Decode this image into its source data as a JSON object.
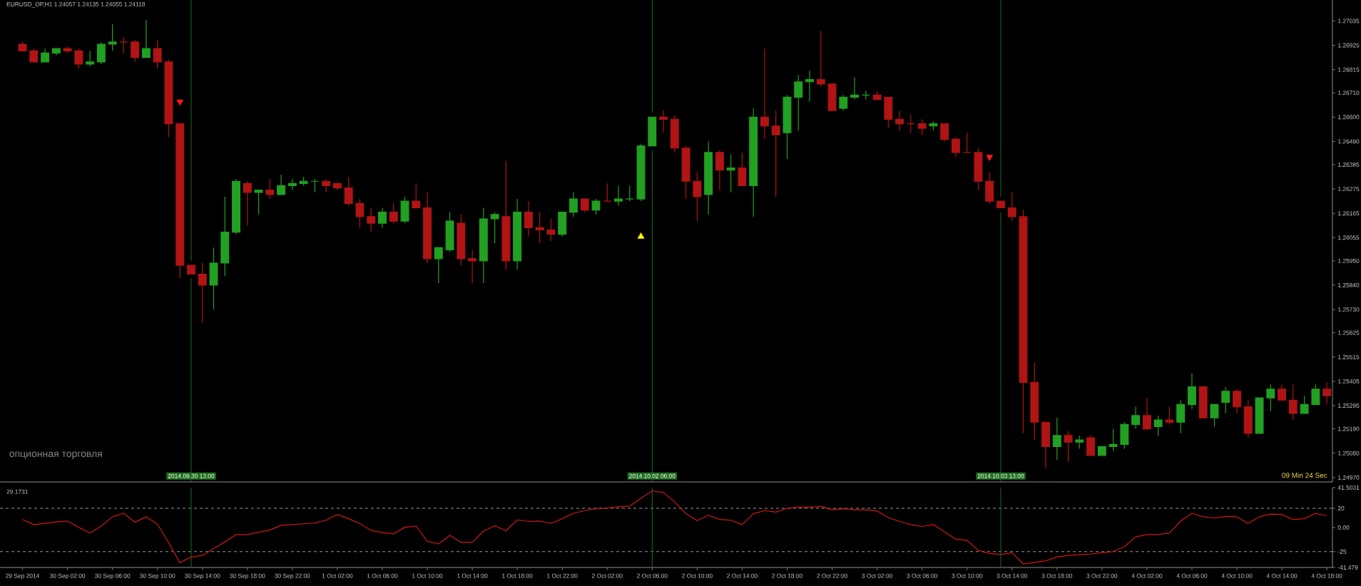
{
  "chart_data": [
    {
      "type": "candlestick",
      "title": "EURUSD_OP,H1  1.24057 1.24135 1.24055 1.24118",
      "x": [
        "2014-09-29T22:00",
        "2014-09-29T23:00",
        "2014-09-30T00:00",
        "2014-09-30T01:00",
        "2014-09-30T02:00",
        "2014-09-30T03:00",
        "2014-09-30T04:00",
        "2014-09-30T05:00",
        "2014-09-30T06:00",
        "2014-09-30T07:00",
        "2014-09-30T08:00",
        "2014-09-30T09:00",
        "2014-09-30T10:00",
        "2014-09-30T11:00",
        "2014-09-30T12:00",
        "2014-09-30T13:00",
        "2014-09-30T14:00",
        "2014-09-30T15:00",
        "2014-09-30T16:00",
        "2014-09-30T17:00",
        "2014-09-30T18:00",
        "2014-09-30T19:00",
        "2014-09-30T20:00",
        "2014-09-30T21:00",
        "2014-09-30T22:00",
        "2014-09-30T23:00",
        "2014-10-01T00:00",
        "2014-10-01T01:00",
        "2014-10-01T02:00",
        "2014-10-01T03:00",
        "2014-10-01T04:00",
        "2014-10-01T05:00",
        "2014-10-01T06:00",
        "2014-10-01T07:00",
        "2014-10-01T08:00",
        "2014-10-01T09:00",
        "2014-10-01T10:00",
        "2014-10-01T11:00",
        "2014-10-01T12:00",
        "2014-10-01T13:00",
        "2014-10-01T14:00",
        "2014-10-01T15:00",
        "2014-10-01T16:00",
        "2014-10-01T17:00",
        "2014-10-01T18:00",
        "2014-10-01T19:00",
        "2014-10-01T20:00",
        "2014-10-01T21:00",
        "2014-10-01T22:00",
        "2014-10-01T23:00",
        "2014-10-02T00:00",
        "2014-10-02T01:00",
        "2014-10-02T02:00",
        "2014-10-02T03:00",
        "2014-10-02T04:00",
        "2014-10-02T05:00",
        "2014-10-02T06:00",
        "2014-10-02T07:00",
        "2014-10-02T08:00",
        "2014-10-02T09:00",
        "2014-10-02T10:00",
        "2014-10-02T11:00",
        "2014-10-02T12:00",
        "2014-10-02T13:00",
        "2014-10-02T14:00",
        "2014-10-02T15:00",
        "2014-10-02T16:00",
        "2014-10-02T17:00",
        "2014-10-02T18:00",
        "2014-10-02T19:00",
        "2014-10-02T20:00",
        "2014-10-02T21:00",
        "2014-10-02T22:00",
        "2014-10-02T23:00",
        "2014-10-03T00:00",
        "2014-10-03T01:00",
        "2014-10-03T02:00",
        "2014-10-03T03:00",
        "2014-10-03T04:00",
        "2014-10-03T05:00",
        "2014-10-03T06:00",
        "2014-10-03T07:00",
        "2014-10-03T08:00",
        "2014-10-03T09:00",
        "2014-10-03T10:00",
        "2014-10-03T11:00",
        "2014-10-03T12:00",
        "2014-10-03T13:00",
        "2014-10-03T14:00",
        "2014-10-03T15:00",
        "2014-10-03T16:00",
        "2014-10-03T17:00",
        "2014-10-03T18:00",
        "2014-10-03T19:00",
        "2014-10-03T20:00",
        "2014-10-03T21:00",
        "2014-10-03T22:00",
        "2014-10-03T23:00",
        "2014-10-04T00:00",
        "2014-10-04T01:00",
        "2014-10-04T02:00",
        "2014-10-04T03:00",
        "2014-10-04T04:00",
        "2014-10-04T05:00",
        "2014-10-04T06:00",
        "2014-10-04T07:00",
        "2014-10-04T08:00",
        "2014-10-04T09:00",
        "2014-10-04T10:00",
        "2014-10-04T11:00",
        "2014-10-04T12:00",
        "2014-10-04T13:00",
        "2014-10-04T14:00",
        "2014-10-04T15:00",
        "2014-10-04T16:00",
        "2014-10-04T17:00",
        "2014-10-04T18:00"
      ],
      "ohlc": [
        [
          1.2693,
          1.2694,
          1.269,
          1.269
        ],
        [
          1.269,
          1.2691,
          1.2685,
          1.2685
        ],
        [
          1.2685,
          1.2691,
          1.2685,
          1.2689
        ],
        [
          1.2689,
          1.2691,
          1.2688,
          1.2691
        ],
        [
          1.2691,
          1.2692,
          1.2689,
          1.269
        ],
        [
          1.269,
          1.2691,
          1.2682,
          1.2684
        ],
        [
          1.2684,
          1.269,
          1.2683,
          1.2685
        ],
        [
          1.2685,
          1.2694,
          1.2684,
          1.2693
        ],
        [
          1.2693,
          1.2702,
          1.269,
          1.2694
        ],
        [
          1.2694,
          1.2696,
          1.2689,
          1.2694
        ],
        [
          1.2694,
          1.2695,
          1.2685,
          1.2687
        ],
        [
          1.2687,
          1.2704,
          1.2687,
          1.2691
        ],
        [
          1.2691,
          1.2695,
          1.2682,
          1.2685
        ],
        [
          1.2685,
          1.2686,
          1.2651,
          1.2657
        ],
        [
          1.2657,
          1.2657,
          1.2587,
          1.2593
        ],
        [
          1.2593,
          1.2593,
          1.2589,
          1.2589
        ],
        [
          1.2589,
          1.2594,
          1.2567,
          1.2584
        ],
        [
          1.2584,
          1.2601,
          1.2573,
          1.2594
        ],
        [
          1.2594,
          1.2624,
          1.2588,
          1.2608
        ],
        [
          1.2608,
          1.2632,
          1.2607,
          1.2631
        ],
        [
          1.263,
          1.2631,
          1.2611,
          1.2626
        ],
        [
          1.2626,
          1.2627,
          1.2616,
          1.2627
        ],
        [
          1.2627,
          1.2632,
          1.2623,
          1.2625
        ],
        [
          1.2625,
          1.2634,
          1.2625,
          1.2629
        ],
        [
          1.2629,
          1.2632,
          1.2627,
          1.263
        ],
        [
          1.263,
          1.2633,
          1.2629,
          1.2631
        ],
        [
          1.2631,
          1.2632,
          1.2626,
          1.2631
        ],
        [
          1.2631,
          1.2632,
          1.2626,
          1.2629
        ],
        [
          1.263,
          1.263,
          1.2627,
          1.2628
        ],
        [
          1.2628,
          1.2633,
          1.262,
          1.2621
        ],
        [
          1.2621,
          1.2623,
          1.261,
          1.2615
        ],
        [
          1.2615,
          1.2619,
          1.2608,
          1.2612
        ],
        [
          1.2612,
          1.2619,
          1.261,
          1.2617
        ],
        [
          1.2617,
          1.2621,
          1.2612,
          1.2613
        ],
        [
          1.2613,
          1.2624,
          1.2612,
          1.2622
        ],
        [
          1.2622,
          1.263,
          1.2619,
          1.2619
        ],
        [
          1.2619,
          1.2626,
          1.2594,
          1.2596
        ],
        [
          1.2596,
          1.2601,
          1.2585,
          1.2601
        ],
        [
          1.26,
          1.2617,
          1.2599,
          1.2613
        ],
        [
          1.2612,
          1.2616,
          1.2593,
          1.2596
        ],
        [
          1.2596,
          1.26,
          1.2585,
          1.2595
        ],
        [
          1.2595,
          1.2619,
          1.2585,
          1.2614
        ],
        [
          1.2614,
          1.2617,
          1.2603,
          1.2616
        ],
        [
          1.2615,
          1.264,
          1.2591,
          1.2595
        ],
        [
          1.2595,
          1.2623,
          1.2591,
          1.2617
        ],
        [
          1.2617,
          1.2622,
          1.2606,
          1.261
        ],
        [
          1.261,
          1.2617,
          1.2603,
          1.2609
        ],
        [
          1.2609,
          1.2614,
          1.2604,
          1.2607
        ],
        [
          1.2607,
          1.2617,
          1.2606,
          1.2617
        ],
        [
          1.2617,
          1.2626,
          1.2615,
          1.2623
        ],
        [
          1.2623,
          1.2623,
          1.2617,
          1.2618
        ],
        [
          1.2618,
          1.2623,
          1.2616,
          1.2622
        ],
        [
          1.2622,
          1.263,
          1.2622,
          1.2622
        ],
        [
          1.2622,
          1.2629,
          1.262,
          1.2623
        ],
        [
          1.2623,
          1.2629,
          1.2622,
          1.2623
        ],
        [
          1.2623,
          1.2648,
          1.2622,
          1.2647
        ],
        [
          1.2647,
          1.266,
          1.2647,
          1.266
        ],
        [
          1.266,
          1.2663,
          1.2653,
          1.2659
        ],
        [
          1.2659,
          1.2661,
          1.2644,
          1.2646
        ],
        [
          1.2646,
          1.2647,
          1.2623,
          1.2631
        ],
        [
          1.2631,
          1.2635,
          1.2613,
          1.2624
        ],
        [
          1.2625,
          1.2649,
          1.2616,
          1.2644
        ],
        [
          1.2644,
          1.2645,
          1.2627,
          1.2636
        ],
        [
          1.2636,
          1.2643,
          1.2626,
          1.2637
        ],
        [
          1.2637,
          1.2644,
          1.2629,
          1.2629
        ],
        [
          1.2629,
          1.2664,
          1.2615,
          1.266
        ],
        [
          1.266,
          1.2691,
          1.265,
          1.2656
        ],
        [
          1.2656,
          1.2663,
          1.2624,
          1.2652
        ],
        [
          1.2653,
          1.267,
          1.2641,
          1.2669
        ],
        [
          1.2669,
          1.2679,
          1.2654,
          1.2676
        ],
        [
          1.2676,
          1.2681,
          1.2667,
          1.2677
        ],
        [
          1.2677,
          1.2699,
          1.2674,
          1.2675
        ],
        [
          1.2675,
          1.2675,
          1.2663,
          1.2663
        ],
        [
          1.2664,
          1.267,
          1.2663,
          1.2669
        ],
        [
          1.2669,
          1.2678,
          1.2668,
          1.267
        ],
        [
          1.267,
          1.2672,
          1.2668,
          1.267
        ],
        [
          1.267,
          1.2672,
          1.2668,
          1.2668
        ],
        [
          1.2669,
          1.2669,
          1.2655,
          1.2659
        ],
        [
          1.2659,
          1.2663,
          1.2654,
          1.2657
        ],
        [
          1.2657,
          1.2661,
          1.2653,
          1.2657
        ],
        [
          1.2657,
          1.2659,
          1.2652,
          1.2655
        ],
        [
          1.2656,
          1.2658,
          1.2654,
          1.2657
        ],
        [
          1.2657,
          1.2657,
          1.2649,
          1.265
        ],
        [
          1.265,
          1.2651,
          1.2642,
          1.2644
        ],
        [
          1.2644,
          1.2653,
          1.2644,
          1.2644
        ],
        [
          1.2644,
          1.2646,
          1.2627,
          1.2631
        ],
        [
          1.2631,
          1.2635,
          1.2621,
          1.2622
        ],
        [
          1.2622,
          1.2622,
          1.2619,
          1.2619
        ],
        [
          1.2619,
          1.2626,
          1.2613,
          1.2615
        ],
        [
          1.2615,
          1.2618,
          1.2517,
          1.254
        ],
        [
          1.254,
          1.2549,
          1.2514,
          1.2522
        ],
        [
          1.2522,
          1.2522,
          1.2501,
          1.2511
        ],
        [
          1.2511,
          1.2524,
          1.2505,
          1.2516
        ],
        [
          1.2516,
          1.2518,
          1.2504,
          1.2513
        ],
        [
          1.2513,
          1.2516,
          1.251,
          1.2514
        ],
        [
          1.2515,
          1.2516,
          1.2507,
          1.2507
        ],
        [
          1.2507,
          1.2511,
          1.2507,
          1.2511
        ],
        [
          1.2511,
          1.2519,
          1.2509,
          1.2512
        ],
        [
          1.2512,
          1.2522,
          1.251,
          1.2521
        ],
        [
          1.2521,
          1.2529,
          1.2519,
          1.2525
        ],
        [
          1.2525,
          1.2533,
          1.2519,
          1.2519
        ],
        [
          1.252,
          1.2525,
          1.2516,
          1.2523
        ],
        [
          1.2523,
          1.2529,
          1.2521,
          1.2522
        ],
        [
          1.2522,
          1.2532,
          1.2517,
          1.253
        ],
        [
          1.253,
          1.2544,
          1.2528,
          1.2538
        ],
        [
          1.2538,
          1.2538,
          1.2524,
          1.2524
        ],
        [
          1.2524,
          1.253,
          1.252,
          1.253
        ],
        [
          1.2531,
          1.2538,
          1.2526,
          1.2536
        ],
        [
          1.2536,
          1.2537,
          1.2526,
          1.2529
        ],
        [
          1.2529,
          1.2532,
          1.2515,
          1.2517
        ],
        [
          1.2517,
          1.2533,
          1.2517,
          1.2533
        ],
        [
          1.2533,
          1.2539,
          1.2527,
          1.2537
        ],
        [
          1.2537,
          1.2539,
          1.2532,
          1.2532
        ],
        [
          1.2532,
          1.2539,
          1.2523,
          1.2526
        ],
        [
          1.2526,
          1.2534,
          1.2526,
          1.253
        ],
        [
          1.253,
          1.2539,
          1.253,
          1.2537
        ],
        [
          1.2537,
          1.254,
          1.253,
          1.2534
        ]
      ],
      "colors": [
        "#b01414",
        "#b01414",
        "#22a022",
        "#22a022",
        "#b01414",
        "#b01414",
        "#22a022",
        "#22a022",
        "#22a022",
        "#b01414",
        "#b01414",
        "#22a022",
        "#b01414",
        "#b01414",
        "#b01414",
        "#b01414",
        "#b01414",
        "#22a022",
        "#22a022",
        "#22a022",
        "#b01414",
        "#22a022",
        "#b01414",
        "#22a022",
        "#22a022",
        "#22a022",
        "#22a022",
        "#b01414",
        "#b01414",
        "#b01414",
        "#b01414",
        "#b01414",
        "#22a022",
        "#b01414",
        "#22a022",
        "#b01414",
        "#b01414",
        "#22a022",
        "#22a022",
        "#b01414",
        "#b01414",
        "#22a022",
        "#22a022",
        "#b01414",
        "#22a022",
        "#b01414",
        "#b01414",
        "#b01414",
        "#22a022",
        "#22a022",
        "#b01414",
        "#22a022",
        "#b01414",
        "#22a022",
        "#22a022",
        "#22a022",
        "#22a022",
        "#b01414",
        "#b01414",
        "#b01414",
        "#b01414",
        "#22a022",
        "#b01414",
        "#22a022",
        "#b01414",
        "#22a022",
        "#b01414",
        "#b01414",
        "#22a022",
        "#22a022",
        "#22a022",
        "#b01414",
        "#b01414",
        "#22a022",
        "#22a022",
        "#22a022",
        "#b01414",
        "#b01414",
        "#b01414",
        "#b01414",
        "#b01414",
        "#22a022",
        "#b01414",
        "#b01414",
        "#b01414",
        "#b01414",
        "#b01414",
        "#b01414",
        "#b01414",
        "#b01414",
        "#b01414",
        "#b01414",
        "#22a022",
        "#b01414",
        "#22a022",
        "#b01414",
        "#22a022",
        "#22a022",
        "#22a022",
        "#22a022",
        "#b01414",
        "#22a022",
        "#b01414",
        "#22a022",
        "#22a022",
        "#b01414",
        "#22a022",
        "#22a022",
        "#b01414",
        "#b01414",
        "#22a022",
        "#22a022",
        "#b01414",
        "#b01414",
        "#22a022",
        "#22a022",
        "#b01414"
      ],
      "marker": "triangle",
      "series": [
        {
          "type": "scatter",
          "color": "#ff1a1a",
          "x": [
            "2014-09-30T12:00",
            "2014-10-03T12:00"
          ],
          "values": [
            1.2667,
            1.2642
          ]
        },
        {
          "type": "scatter",
          "color": "#ffff00",
          "x": [
            "2014-10-02T05:00"
          ],
          "values": [
            1.2606
          ]
        }
      ],
      "xlim": [
        "2014-09-29T20:00",
        "2014-10-04T18:30"
      ],
      "ylim": [
        1.2495,
        1.2713
      ],
      "yticks": [
        1.27035,
        1.26925,
        1.26815,
        {
          "value": 1.2671,
          "label": "1.26710"
        },
        {
          "value": 1.266,
          "label": "1.26600"
        },
        {
          "value": 1.2649,
          "label": "1.26490"
        },
        1.26385,
        1.26275,
        1.26165,
        1.26055,
        {
          "value": 1.2595,
          "label": "1.25950"
        },
        {
          "value": 1.2584,
          "label": "1.25840"
        },
        {
          "value": 1.2573,
          "label": "1.25730"
        },
        1.25625,
        1.25515,
        1.25405,
        1.25295,
        {
          "value": 1.2519,
          "label": "1.25190"
        },
        {
          "value": 1.2508,
          "label": "1.25080"
        },
        {
          "value": 1.2497,
          "label": "1.24970"
        }
      ],
      "tick_labels": "y",
      "ref_lines": [
        {
          "axis": "x",
          "value": "2014-09-30T13:00",
          "label": "2014.09.30 13:00",
          "color": "#1e6e1e"
        },
        {
          "axis": "x",
          "value": "2014-10-02T06:00",
          "label": "2014.10.02 06:00",
          "color": "#1e6e1e"
        },
        {
          "axis": "x",
          "value": "2014-10-03T13:00",
          "label": "2014.10.03 13:00",
          "color": "#1e6e1e"
        }
      ],
      "annotations": [
        "опционная торговля",
        "09 Min 24 Sec"
      ]
    },
    {
      "type": "line",
      "color": "#d01818",
      "x": [
        "2014-09-29T22:00",
        "2014-09-29T23:00",
        "2014-09-30T00:00",
        "2014-09-30T01:00",
        "2014-09-30T02:00",
        "2014-09-30T03:00",
        "2014-09-30T04:00",
        "2014-09-30T05:00",
        "2014-09-30T06:00",
        "2014-09-30T07:00",
        "2014-09-30T08:00",
        "2014-09-30T09:00",
        "2014-09-30T10:00",
        "2014-09-30T11:00",
        "2014-09-30T12:00",
        "2014-09-30T13:00",
        "2014-09-30T14:00",
        "2014-09-30T15:00",
        "2014-09-30T16:00",
        "2014-09-30T17:00",
        "2014-09-30T18:00",
        "2014-09-30T19:00",
        "2014-09-30T20:00",
        "2014-09-30T21:00",
        "2014-09-30T22:00",
        "2014-09-30T23:00",
        "2014-10-01T00:00",
        "2014-10-01T01:00",
        "2014-10-01T02:00",
        "2014-10-01T03:00",
        "2014-10-01T04:00",
        "2014-10-01T05:00",
        "2014-10-01T06:00",
        "2014-10-01T07:00",
        "2014-10-01T08:00",
        "2014-10-01T09:00",
        "2014-10-01T10:00",
        "2014-10-01T11:00",
        "2014-10-01T12:00",
        "2014-10-01T13:00",
        "2014-10-01T14:00",
        "2014-10-01T15:00",
        "2014-10-01T16:00",
        "2014-10-01T17:00",
        "2014-10-01T18:00",
        "2014-10-01T19:00",
        "2014-10-01T20:00",
        "2014-10-01T21:00",
        "2014-10-01T22:00",
        "2014-10-01T23:00",
        "2014-10-02T00:00",
        "2014-10-02T01:00",
        "2014-10-02T02:00",
        "2014-10-02T03:00",
        "2014-10-02T04:00",
        "2014-10-02T05:00",
        "2014-10-02T06:00",
        "2014-10-02T07:00",
        "2014-10-02T08:00",
        "2014-10-02T09:00",
        "2014-10-02T10:00",
        "2014-10-02T11:00",
        "2014-10-02T12:00",
        "2014-10-02T13:00",
        "2014-10-02T14:00",
        "2014-10-02T15:00",
        "2014-10-02T16:00",
        "2014-10-02T17:00",
        "2014-10-02T18:00",
        "2014-10-02T19:00",
        "2014-10-02T20:00",
        "2014-10-02T21:00",
        "2014-10-02T22:00",
        "2014-10-02T23:00",
        "2014-10-03T00:00",
        "2014-10-03T01:00",
        "2014-10-03T02:00",
        "2014-10-03T03:00",
        "2014-10-03T04:00",
        "2014-10-03T05:00",
        "2014-10-03T06:00",
        "2014-10-03T07:00",
        "2014-10-03T08:00",
        "2014-10-03T09:00",
        "2014-10-03T10:00",
        "2014-10-03T11:00",
        "2014-10-03T12:00",
        "2014-10-03T13:00",
        "2014-10-03T14:00",
        "2014-10-03T15:00",
        "2014-10-03T16:00",
        "2014-10-03T17:00",
        "2014-10-03T18:00",
        "2014-10-03T19:00",
        "2014-10-03T20:00",
        "2014-10-03T21:00",
        "2014-10-03T22:00",
        "2014-10-03T23:00",
        "2014-10-04T00:00",
        "2014-10-04T01:00",
        "2014-10-04T02:00",
        "2014-10-04T03:00",
        "2014-10-04T04:00",
        "2014-10-04T05:00",
        "2014-10-04T06:00",
        "2014-10-04T07:00",
        "2014-10-04T08:00",
        "2014-10-04T09:00",
        "2014-10-04T10:00",
        "2014-10-04T11:00",
        "2014-10-04T12:00",
        "2014-10-04T13:00",
        "2014-10-04T14:00",
        "2014-10-04T15:00",
        "2014-10-04T16:00",
        "2014-10-04T17:00",
        "2014-10-04T18:00"
      ],
      "values": [
        8.4,
        3.1,
        4.3,
        5.9,
        6.7,
        0.3,
        -5.7,
        1.5,
        11.2,
        14.8,
        5.5,
        11.2,
        3.5,
        -15.7,
        -36.6,
        -30.6,
        -29.0,
        -21.8,
        -14.9,
        -7.3,
        -7.3,
        -4.9,
        -2.5,
        2.3,
        3.1,
        3.9,
        4.7,
        7.6,
        13.6,
        9.2,
        4.3,
        -2.9,
        -5.3,
        -6.5,
        0.3,
        1.5,
        -14.1,
        -17.0,
        -8.1,
        -15.3,
        -15.3,
        -3.7,
        1.9,
        -3.3,
        8.0,
        6.3,
        6.7,
        4.3,
        9.2,
        14.8,
        17.6,
        19.6,
        20.4,
        21.6,
        22.4,
        30.4,
        38.0,
        36.4,
        26.6,
        14.4,
        7.2,
        12.8,
        8.4,
        7.6,
        3.1,
        14.4,
        17.6,
        16.0,
        20.0,
        21.2,
        21.2,
        22.0,
        18.4,
        19.6,
        18.4,
        18.4,
        17.2,
        10.4,
        6.3,
        3.1,
        1.1,
        3.1,
        -4.5,
        -12.1,
        -13.3,
        -23.8,
        -27.0,
        -27.8,
        -26.2,
        -37.8,
        -36.2,
        -34.6,
        -30.6,
        -29.0,
        -28.2,
        -27.4,
        -26.2,
        -25.0,
        -19.8,
        -9.7,
        -7.3,
        -7.3,
        -5.7,
        6.7,
        14.8,
        11.2,
        10.0,
        11.6,
        11.2,
        4.3,
        11.2,
        14.0,
        13.6,
        8.4,
        9.2,
        14.8,
        12.4
      ],
      "xlim": [
        "2014-09-29T20:00",
        "2014-10-04T18:30"
      ],
      "ylim": [
        -41.479,
        41.5031
      ],
      "yticks": [
        41.5031,
        20,
        {
          "value": 0,
          "label": "0.00"
        },
        -25,
        -41.479
      ],
      "xticks": [
        {
          "value": "2014-09-29T22:00",
          "label": "29 Sep 2014"
        },
        {
          "value": "2014-09-30T02:00",
          "label": "30 Sep 02:00"
        },
        {
          "value": "2014-09-30T06:00",
          "label": "30 Sep 06:00"
        },
        {
          "value": "2014-09-30T10:00",
          "label": "30 Sep 10:00"
        },
        {
          "value": "2014-09-30T14:00",
          "label": "30 Sep 14:00"
        },
        {
          "value": "2014-09-30T18:00",
          "label": "30 Sep 18:00"
        },
        {
          "value": "2014-09-30T22:00",
          "label": "30 Sep 22:00"
        },
        {
          "value": "2014-10-01T02:00",
          "label": "1 Oct 02:00"
        },
        {
          "value": "2014-10-01T06:00",
          "label": "1 Oct 06:00"
        },
        {
          "value": "2014-10-01T10:00",
          "label": "1 Oct 10:00"
        },
        {
          "value": "2014-10-01T14:00",
          "label": "1 Oct 14:00"
        },
        {
          "value": "2014-10-01T18:00",
          "label": "1 Oct 18:00"
        },
        {
          "value": "2014-10-01T22:00",
          "label": "1 Oct 22:00"
        },
        {
          "value": "2014-10-02T02:00",
          "label": "2 Oct 02:00"
        },
        {
          "value": "2014-10-02T06:00",
          "label": "2 Oct 06:00"
        },
        {
          "value": "2014-10-02T10:00",
          "label": "2 Oct 10:00"
        },
        {
          "value": "2014-10-02T14:00",
          "label": "2 Oct 14:00"
        },
        {
          "value": "2014-10-02T18:00",
          "label": "2 Oct 18:00"
        },
        {
          "value": "2014-10-02T22:00",
          "label": "2 Oct 22:00"
        },
        {
          "value": "2014-10-03T02:00",
          "label": "3 Oct 02:00"
        },
        {
          "value": "2014-10-03T06:00",
          "label": "3 Oct 06:00"
        },
        {
          "value": "2014-10-03T10:00",
          "label": "3 Oct 10:00"
        },
        {
          "value": "2014-10-03T14:00",
          "label": "3 Oct 14:00"
        },
        {
          "value": "2014-10-03T18:00",
          "label": "3 Oct 18:00"
        },
        {
          "value": "2014-10-03T22:00",
          "label": "3 Oct 22:00"
        },
        {
          "value": "2014-10-04T02:00",
          "label": "4 Oct 02:00"
        },
        {
          "value": "2014-10-04T06:00",
          "label": "4 Oct 06:00"
        },
        {
          "value": "2014-10-04T10:00",
          "label": "4 Oct 10:00"
        },
        {
          "value": "2014-10-04T14:00",
          "label": "4 Oct 14:00"
        },
        {
          "value": "2014-10-04T18:00",
          "label": "4 Oct 18:00"
        }
      ],
      "ref_lines": [
        {
          "axis": "y",
          "value": 20,
          "color": "#9a9a9a",
          "line_style": "dashed"
        },
        {
          "axis": "y",
          "value": -25,
          "color": "#9a9a9a",
          "line_style": "dashed"
        },
        {
          "axis": "x",
          "value": "2014-09-30T13:00",
          "color": "#1e6e1e"
        },
        {
          "axis": "x",
          "value": "2014-10-02T06:00",
          "color": "#1e6e1e"
        },
        {
          "axis": "x",
          "value": "2014-10-03T13:00",
          "color": "#1e6e1e"
        }
      ],
      "annotations": [
        "29.1731"
      ]
    }
  ]
}
